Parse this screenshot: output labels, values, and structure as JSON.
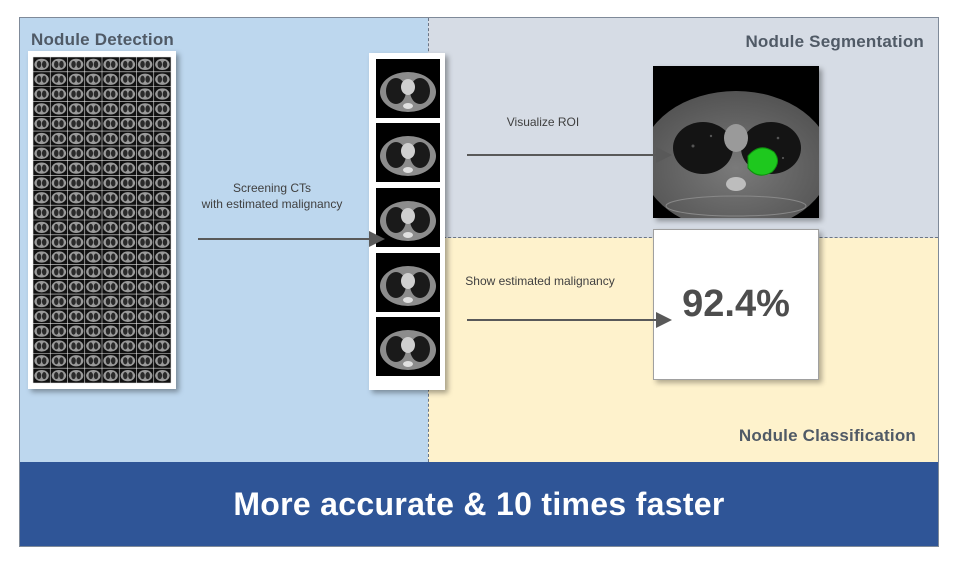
{
  "panels": {
    "detection_title": "Nodule Detection",
    "segmentation_title": "Nodule Segmentation",
    "classification_title": "Nodule Classification"
  },
  "arrows": {
    "screening_line1": "Screening CTs",
    "screening_line2": "with estimated malignancy",
    "visualize": "Visualize ROI",
    "show_malignancy": "Show estimated malignancy"
  },
  "result": {
    "malignancy": "92.4%"
  },
  "banner": {
    "text": "More accurate & 10 times faster"
  },
  "colors": {
    "detection_bg": "#bdd7ee",
    "segmentation_bg": "#d6dce5",
    "classification_bg": "#fef2cc",
    "banner_bg": "#2f5597",
    "nodule": "#1ec81e"
  },
  "ct_grid": {
    "columns": 8,
    "rows": 22
  },
  "slice_count": 5
}
